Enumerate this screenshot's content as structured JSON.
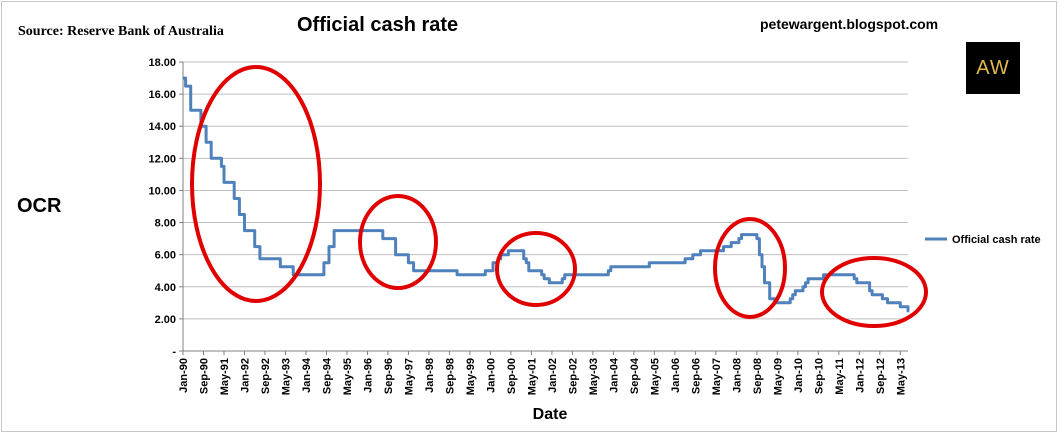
{
  "header": {
    "source": "Source: Reserve Bank of Australia",
    "blog": "petewargent.blogspot.com",
    "logo_text": "AW"
  },
  "colors": {
    "line": "#4f81bd",
    "circle": "#e00000",
    "grid": "#c0c0c0",
    "logo_bg": "#000000",
    "logo_fg": "#e0b84a"
  },
  "chart_data": {
    "type": "line",
    "title": "Official cash rate",
    "xlabel": "Date",
    "ylabel": "OCR",
    "ylim": [
      0,
      18
    ],
    "yticks": [
      {
        "value": 0,
        "label": "-"
      },
      {
        "value": 2,
        "label": "2.00"
      },
      {
        "value": 4,
        "label": "4.00"
      },
      {
        "value": 6,
        "label": "6.00"
      },
      {
        "value": 8,
        "label": "8.00"
      },
      {
        "value": 10,
        "label": "10.00"
      },
      {
        "value": 12,
        "label": "12.00"
      },
      {
        "value": 14,
        "label": "14.00"
      },
      {
        "value": 16,
        "label": "16.00"
      },
      {
        "value": 18,
        "label": "18.00"
      }
    ],
    "xticks": [
      "Jan-90",
      "Sep-90",
      "May-91",
      "Jan-92",
      "Sep-92",
      "May-93",
      "Jan-94",
      "Sep-94",
      "May-95",
      "Jan-96",
      "Sep-96",
      "May-97",
      "Jan-98",
      "Sep-98",
      "May-99",
      "Jan-00",
      "Sep-00",
      "May-01",
      "Jan-02",
      "Sep-02",
      "May-03",
      "Jan-04",
      "Sep-04",
      "May-05",
      "Jan-06",
      "Sep-06",
      "May-07",
      "Jan-08",
      "Sep-08",
      "May-09",
      "Jan-10",
      "Sep-10",
      "May-11",
      "Jan-12",
      "Sep-12",
      "May-13"
    ],
    "x_range": [
      "1990-01",
      "2013-08"
    ],
    "legend": {
      "position": "right"
    },
    "grid": true,
    "series": [
      {
        "name": "Official cash rate",
        "points": [
          [
            "1990-01",
            17.0
          ],
          [
            "1990-02",
            16.5
          ],
          [
            "1990-04",
            15.0
          ],
          [
            "1990-08",
            14.0
          ],
          [
            "1990-10",
            13.0
          ],
          [
            "1990-12",
            12.0
          ],
          [
            "1991-04",
            11.5
          ],
          [
            "1991-05",
            10.5
          ],
          [
            "1991-09",
            9.5
          ],
          [
            "1991-11",
            8.5
          ],
          [
            "1992-01",
            7.5
          ],
          [
            "1992-05",
            6.5
          ],
          [
            "1992-07",
            5.75
          ],
          [
            "1993-03",
            5.25
          ],
          [
            "1993-08",
            4.75
          ],
          [
            "1994-08",
            5.5
          ],
          [
            "1994-10",
            6.5
          ],
          [
            "1994-12",
            7.5
          ],
          [
            "1996-07",
            7.0
          ],
          [
            "1996-12",
            6.0
          ],
          [
            "1997-05",
            5.5
          ],
          [
            "1997-07",
            5.0
          ],
          [
            "1998-12",
            4.75
          ],
          [
            "1999-11",
            5.0
          ],
          [
            "2000-02",
            5.5
          ],
          [
            "2000-04",
            5.75
          ],
          [
            "2000-05",
            6.0
          ],
          [
            "2000-08",
            6.25
          ],
          [
            "2001-02",
            5.75
          ],
          [
            "2001-03",
            5.5
          ],
          [
            "2001-04",
            5.0
          ],
          [
            "2001-09",
            4.75
          ],
          [
            "2001-10",
            4.5
          ],
          [
            "2001-12",
            4.25
          ],
          [
            "2002-05",
            4.5
          ],
          [
            "2002-06",
            4.75
          ],
          [
            "2003-11",
            5.0
          ],
          [
            "2003-12",
            5.25
          ],
          [
            "2005-03",
            5.5
          ],
          [
            "2006-05",
            5.75
          ],
          [
            "2006-08",
            6.0
          ],
          [
            "2006-11",
            6.25
          ],
          [
            "2007-08",
            6.5
          ],
          [
            "2007-11",
            6.75
          ],
          [
            "2008-02",
            7.0
          ],
          [
            "2008-03",
            7.25
          ],
          [
            "2008-09",
            7.0
          ],
          [
            "2008-10",
            6.0
          ],
          [
            "2008-11",
            5.25
          ],
          [
            "2008-12",
            4.25
          ],
          [
            "2009-02",
            3.25
          ],
          [
            "2009-04",
            3.0
          ],
          [
            "2009-10",
            3.25
          ],
          [
            "2009-11",
            3.5
          ],
          [
            "2009-12",
            3.75
          ],
          [
            "2010-03",
            4.0
          ],
          [
            "2010-04",
            4.25
          ],
          [
            "2010-05",
            4.5
          ],
          [
            "2010-11",
            4.75
          ],
          [
            "2011-11",
            4.5
          ],
          [
            "2011-12",
            4.25
          ],
          [
            "2012-05",
            3.75
          ],
          [
            "2012-06",
            3.5
          ],
          [
            "2012-10",
            3.25
          ],
          [
            "2012-12",
            3.0
          ],
          [
            "2013-05",
            2.75
          ],
          [
            "2013-08",
            2.5
          ]
        ]
      }
    ]
  }
}
